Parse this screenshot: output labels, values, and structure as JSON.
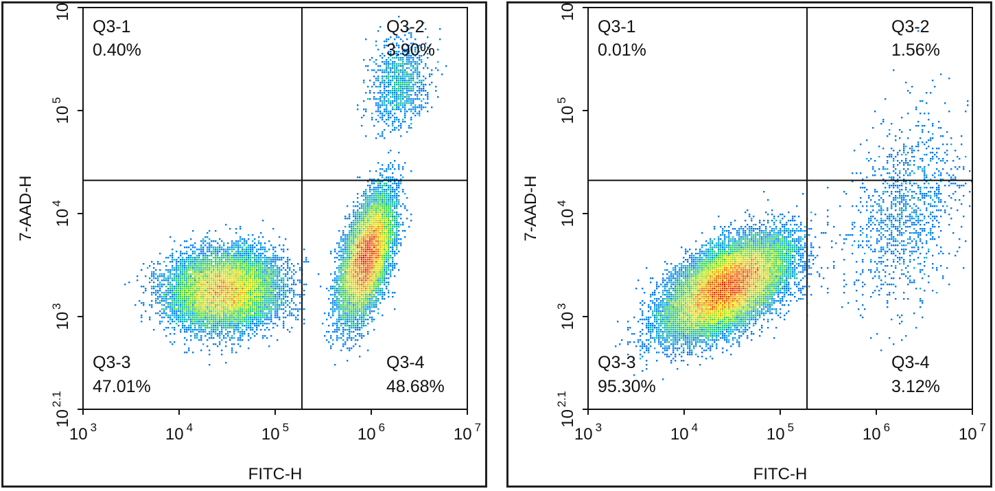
{
  "chart_data": [
    {
      "type": "scatter",
      "subtype": "flow-cytometry-density",
      "xlabel": "FITC-H",
      "ylabel": "7-AAD-H",
      "x_scale": "log",
      "y_scale": "log",
      "xlim": [
        1000,
        10000000
      ],
      "ylim": [
        125.9,
        1000000
      ],
      "x_ticks": [
        {
          "base": "10",
          "exp": "3",
          "value": 1000
        },
        {
          "base": "10",
          "exp": "4",
          "value": 10000
        },
        {
          "base": "10",
          "exp": "5",
          "value": 100000
        },
        {
          "base": "10",
          "exp": "6",
          "value": 1000000
        },
        {
          "base": "10",
          "exp": "7",
          "value": 10000000
        }
      ],
      "y_ticks": [
        {
          "base": "10",
          "exp": "2.1",
          "value": 125.9
        },
        {
          "base": "10",
          "exp": "3",
          "value": 1000
        },
        {
          "base": "10",
          "exp": "4",
          "value": 10000
        },
        {
          "base": "10",
          "exp": "5",
          "value": 100000
        },
        {
          "base": "10",
          "exp": "6",
          "value": 1000000
        }
      ],
      "gate": {
        "x": 190000,
        "y": 21000
      },
      "quadrants": [
        {
          "name": "Q3-1",
          "percent": "0.40%",
          "position": "top-left"
        },
        {
          "name": "Q3-2",
          "percent": "3.90%",
          "position": "top-right"
        },
        {
          "name": "Q3-3",
          "percent": "47.01%",
          "position": "bottom-left"
        },
        {
          "name": "Q3-4",
          "percent": "48.68%",
          "position": "bottom-right"
        }
      ],
      "populations": [
        {
          "cx": 30000,
          "cy": 1800,
          "sx_dec": 0.28,
          "sy_dec": 0.18,
          "rho": 0.05,
          "weight": 0.47
        },
        {
          "cx": 900000,
          "cy": 3800,
          "sx_dec": 0.13,
          "sy_dec": 0.28,
          "rho": 0.55,
          "weight": 0.49
        },
        {
          "cx": 2000000,
          "cy": 180000,
          "sx_dec": 0.15,
          "sy_dec": 0.22,
          "rho": 0.2,
          "weight": 0.04
        }
      ]
    },
    {
      "type": "scatter",
      "subtype": "flow-cytometry-density",
      "xlabel": "FITC-H",
      "ylabel": "7-AAD-H",
      "x_scale": "log",
      "y_scale": "log",
      "xlim": [
        1000,
        10000000
      ],
      "ylim": [
        125.9,
        1000000
      ],
      "x_ticks": [
        {
          "base": "10",
          "exp": "3",
          "value": 1000
        },
        {
          "base": "10",
          "exp": "4",
          "value": 10000
        },
        {
          "base": "10",
          "exp": "5",
          "value": 100000
        },
        {
          "base": "10",
          "exp": "6",
          "value": 1000000
        },
        {
          "base": "10",
          "exp": "7",
          "value": 10000000
        }
      ],
      "y_ticks": [
        {
          "base": "10",
          "exp": "2.1",
          "value": 125.9
        },
        {
          "base": "10",
          "exp": "3",
          "value": 1000
        },
        {
          "base": "10",
          "exp": "4",
          "value": 10000
        },
        {
          "base": "10",
          "exp": "5",
          "value": 100000
        },
        {
          "base": "10",
          "exp": "6",
          "value": 1000000
        }
      ],
      "gate": {
        "x": 190000,
        "y": 21000
      },
      "quadrants": [
        {
          "name": "Q3-1",
          "percent": "0.01%",
          "position": "top-left"
        },
        {
          "name": "Q3-2",
          "percent": "1.56%",
          "position": "top-right"
        },
        {
          "name": "Q3-3",
          "percent": "95.30%",
          "position": "bottom-left"
        },
        {
          "name": "Q3-4",
          "percent": "3.12%",
          "position": "bottom-right"
        }
      ],
      "populations": [
        {
          "cx": 28000,
          "cy": 1900,
          "sx_dec": 0.3,
          "sy_dec": 0.22,
          "rho": 0.55,
          "weight": 0.953
        },
        {
          "cx": 2000000,
          "cy": 10000,
          "sx_dec": 0.3,
          "sy_dec": 0.45,
          "rho": 0.35,
          "weight": 0.047
        }
      ]
    }
  ]
}
